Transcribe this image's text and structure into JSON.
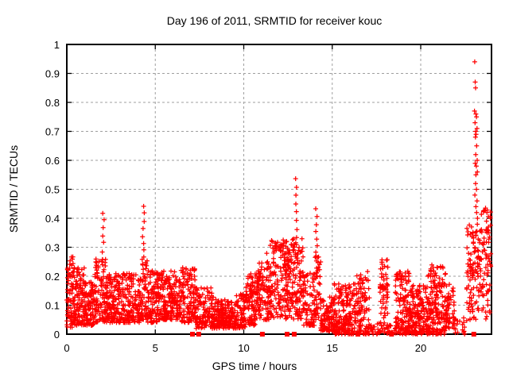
{
  "window": {
    "background": "#ffffff"
  },
  "chart_data": {
    "type": "scatter",
    "title": "Day 196 of 2011, SRMTID for receiver kouc",
    "xlabel": "GPS time / hours",
    "ylabel": "SRMTID / TECUs",
    "xlim": [
      0,
      24
    ],
    "ylim": [
      0,
      1
    ],
    "xticks": {
      "values": [
        0,
        5,
        10,
        15,
        20
      ],
      "labels": [
        "0",
        "5",
        "10",
        "15",
        "20"
      ]
    },
    "yticks": {
      "values": [
        0,
        0.1,
        0.2,
        0.3,
        0.4,
        0.5,
        0.6,
        0.7,
        0.8,
        0.9,
        1
      ],
      "labels": [
        "0",
        "0.1",
        "0.2",
        "0.3",
        "0.4",
        "0.5",
        "0.6",
        "0.7",
        "0.8",
        "0.9",
        "1"
      ]
    },
    "grid": true,
    "legend": "none",
    "marker": {
      "type": "plus",
      "color": "#ff0000",
      "size": 7
    },
    "zero_marker": {
      "type": "filled-square",
      "color": "#ff0000",
      "size": 6
    },
    "colors": {
      "points": "#ff0000",
      "grid": "#9f9f9f",
      "border": "#000000",
      "background": "#ffffff",
      "text": "#000000"
    },
    "scatter_bands_note": "Dense noisy band of + markers; each entry = [x_start_h, x_end_h, y_min_TECU, y_max_TECU, n_points, skew_exponent]",
    "scatter_bands": [
      [
        0.0,
        0.35,
        0.02,
        0.27,
        60,
        1.2
      ],
      [
        0.35,
        1.0,
        0.03,
        0.23,
        120,
        1.3
      ],
      [
        1.0,
        1.55,
        0.03,
        0.18,
        90,
        1.4
      ],
      [
        1.55,
        2.25,
        0.04,
        0.26,
        110,
        1.3
      ],
      [
        2.25,
        3.1,
        0.04,
        0.21,
        140,
        1.4
      ],
      [
        3.1,
        4.2,
        0.04,
        0.21,
        160,
        1.4
      ],
      [
        4.2,
        4.55,
        0.05,
        0.26,
        50,
        1.2
      ],
      [
        4.55,
        5.2,
        0.04,
        0.22,
        100,
        1.4
      ],
      [
        5.2,
        6.4,
        0.05,
        0.22,
        180,
        1.4
      ],
      [
        6.4,
        7.3,
        0.04,
        0.23,
        130,
        1.4
      ],
      [
        7.3,
        8.3,
        0.02,
        0.16,
        130,
        1.4
      ],
      [
        8.3,
        9.5,
        0.02,
        0.12,
        170,
        1.3
      ],
      [
        9.5,
        10.1,
        0.02,
        0.14,
        80,
        1.4
      ],
      [
        10.1,
        10.7,
        0.03,
        0.21,
        90,
        1.3
      ],
      [
        10.7,
        11.5,
        0.05,
        0.25,
        110,
        1.3
      ],
      [
        11.5,
        12.65,
        0.05,
        0.33,
        180,
        1.2
      ],
      [
        12.65,
        13.35,
        0.05,
        0.33,
        110,
        1.2
      ],
      [
        13.35,
        14.0,
        0.03,
        0.22,
        80,
        1.5
      ],
      [
        14.0,
        14.35,
        0.05,
        0.27,
        45,
        1.2
      ],
      [
        14.35,
        15.1,
        0.01,
        0.13,
        100,
        1.5
      ],
      [
        15.1,
        16.3,
        0.0,
        0.18,
        180,
        1.6
      ],
      [
        16.3,
        17.1,
        0.0,
        0.22,
        110,
        1.6
      ],
      [
        17.1,
        17.7,
        0.0,
        0.04,
        18,
        1.3
      ],
      [
        17.7,
        18.15,
        0.0,
        0.26,
        65,
        1.3
      ],
      [
        18.15,
        18.55,
        0.0,
        0.04,
        12,
        1.3
      ],
      [
        18.55,
        19.4,
        0.0,
        0.22,
        140,
        1.6
      ],
      [
        19.4,
        20.4,
        0.0,
        0.17,
        160,
        1.5
      ],
      [
        20.4,
        21.4,
        0.0,
        0.24,
        170,
        1.5
      ],
      [
        21.4,
        21.95,
        0.02,
        0.18,
        60,
        1.4
      ],
      [
        21.95,
        22.6,
        0.0,
        0.06,
        16,
        1.3
      ],
      [
        22.6,
        23.35,
        0.05,
        0.38,
        100,
        1.1
      ],
      [
        23.35,
        23.97,
        0.05,
        0.44,
        80,
        1.0
      ]
    ],
    "spikes_note": "Narrow vertical streaks of + markers; each = {x_h, y_min, y_max, n}",
    "spikes": [
      {
        "x": 0.3,
        "y0": 0.24,
        "y1": 0.27,
        "n": 2
      },
      {
        "x": 2.05,
        "y0": 0.26,
        "y1": 0.42,
        "n": 7
      },
      {
        "x": 4.33,
        "y0": 0.24,
        "y1": 0.44,
        "n": 9
      },
      {
        "x": 11.3,
        "y0": 0.2,
        "y1": 0.28,
        "n": 4
      },
      {
        "x": 12.97,
        "y0": 0.33,
        "y1": 0.54,
        "n": 8
      },
      {
        "x": 14.12,
        "y0": 0.28,
        "y1": 0.43,
        "n": 7
      },
      {
        "x": 17.85,
        "y0": 0.2,
        "y1": 0.26,
        "n": 3
      }
    ],
    "tail_points_note": "High outlier points of the spike near hour 23 [x_h, y_TECU]",
    "tail_points": [
      [
        23.05,
        0.94
      ],
      [
        23.08,
        0.87
      ],
      [
        23.1,
        0.85
      ],
      [
        23.04,
        0.77
      ],
      [
        23.12,
        0.76
      ],
      [
        23.15,
        0.75
      ],
      [
        23.07,
        0.73
      ],
      [
        23.18,
        0.71
      ],
      [
        23.1,
        0.7
      ],
      [
        23.13,
        0.69
      ],
      [
        23.09,
        0.68
      ],
      [
        23.16,
        0.65
      ],
      [
        23.11,
        0.62
      ],
      [
        23.19,
        0.6
      ],
      [
        23.08,
        0.59
      ],
      [
        23.14,
        0.58
      ],
      [
        23.2,
        0.56
      ],
      [
        23.12,
        0.55
      ],
      [
        23.1,
        0.52
      ],
      [
        23.15,
        0.5
      ],
      [
        23.06,
        0.48
      ],
      [
        23.18,
        0.46
      ],
      [
        23.12,
        0.44
      ],
      [
        23.16,
        0.42
      ],
      [
        23.21,
        0.4
      ]
    ],
    "zero_axis_squares_note": "x positions (hours) of filled red squares plotted at y=0 on the axis",
    "zero_axis_squares": [
      7.1,
      7.45,
      11.05,
      12.45,
      12.85,
      16.45,
      18.35,
      23.0
    ]
  }
}
